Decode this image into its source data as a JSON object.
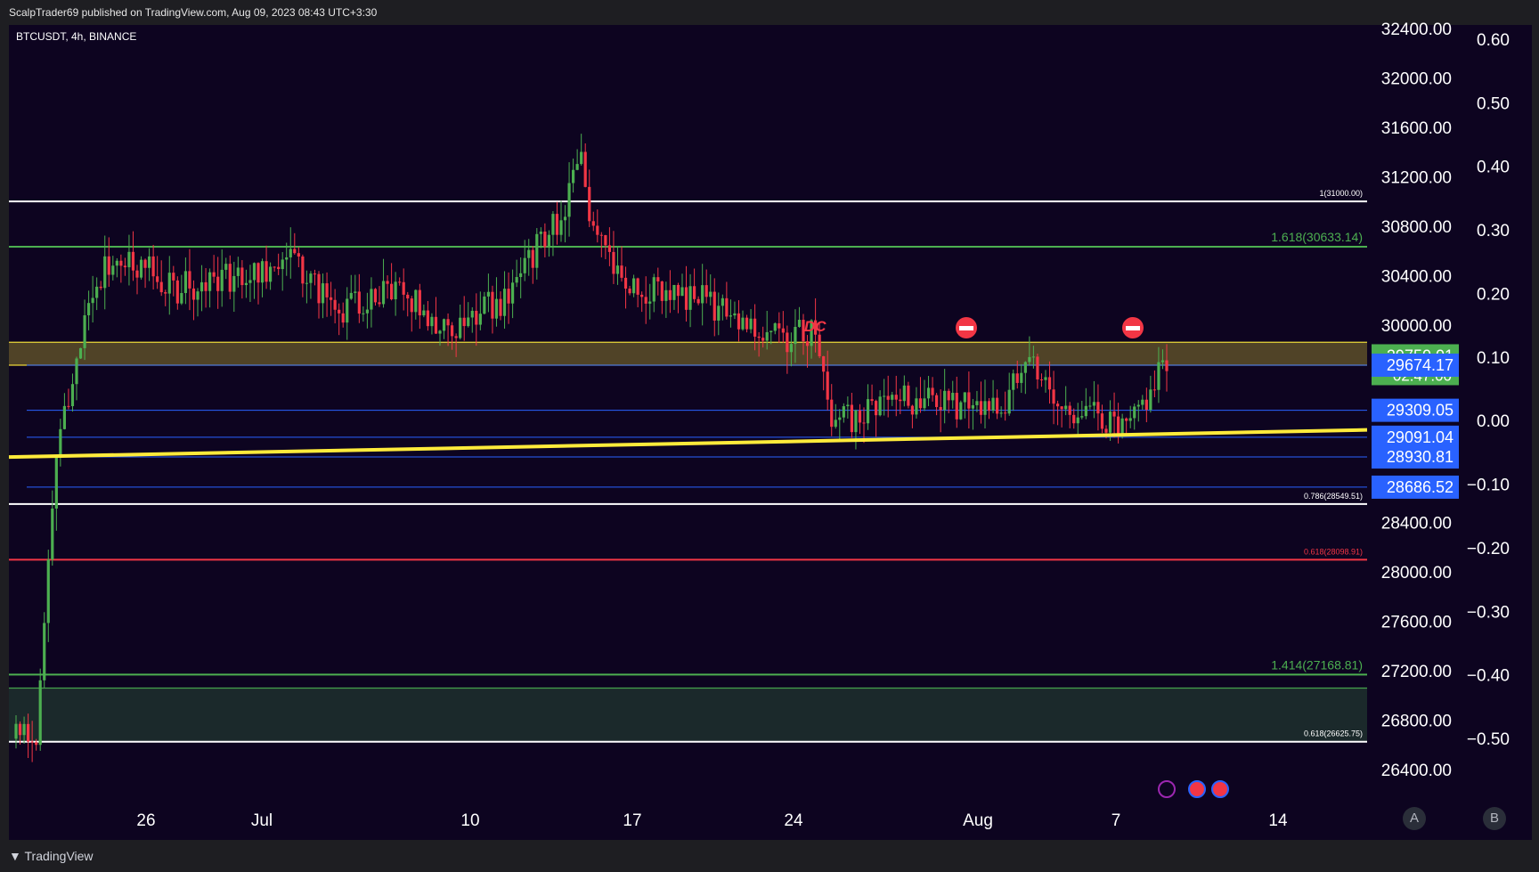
{
  "header": {
    "publisher_line": "ScalpTrader69 published on TradingView.com, Aug 09, 2023 08:43 UTC+3:30"
  },
  "footer": {
    "brand": "TradingView"
  },
  "chart_data": {
    "type": "candlestick",
    "title": "BTCUSDT, 4h, BINANCE",
    "price_axis": {
      "ticks": [
        "32400.00",
        "32000.00",
        "31600.00",
        "31200.00",
        "30800.00",
        "30400.00",
        "30000.00",
        "28400.00",
        "28000.00",
        "27600.00",
        "27200.00",
        "26800.00",
        "26400.00"
      ],
      "range": [
        26200,
        32500
      ]
    },
    "ratio_axis": {
      "ticks": [
        "0.60",
        "0.50",
        "0.40",
        "0.30",
        "0.20",
        "0.10",
        "0.00",
        "−0.10",
        "−0.20",
        "−0.30",
        "−0.40",
        "−0.50"
      ],
      "range": [
        -0.55,
        0.65
      ]
    },
    "x_axis": {
      "ticks": [
        "26",
        "Jul",
        "10",
        "17",
        "24",
        "Aug",
        "7",
        "14"
      ]
    },
    "price_labels": [
      {
        "value": "29750.01",
        "sub": "02:47:00",
        "color": "#4caf50"
      },
      {
        "value": "29674.17",
        "color": "#2962ff"
      },
      {
        "value": "29309.05",
        "color": "#2962ff"
      },
      {
        "value": "29091.04",
        "color": "#2962ff"
      },
      {
        "value": "28930.81",
        "color": "#2962ff"
      },
      {
        "value": "28686.52",
        "color": "#2962ff"
      }
    ],
    "horizontal_levels": [
      {
        "price": 31000.0,
        "label": "1(31000.00)",
        "color": "#ffffff"
      },
      {
        "price": 30633.14,
        "label": "1.618(30633.14)",
        "color": "#4caf50"
      },
      {
        "price": 28549.51,
        "label": "0.786(28549.51)",
        "color": "#ffffff"
      },
      {
        "price": 28098.91,
        "label": "0.618(28098.91)",
        "color": "#f23645"
      },
      {
        "price": 27168.81,
        "label": "1.414(27168.81)",
        "color": "#4caf50"
      },
      {
        "price": 26625.75,
        "label": "0.618(26625.75)",
        "color": "#ffffff"
      }
    ],
    "zones": [
      {
        "from": 29674.17,
        "to": 29860.0,
        "color": "#ffeb3b"
      },
      {
        "from": 26625.75,
        "to": 27060.0,
        "color": "#4caf50"
      }
    ],
    "annotations": [
      {
        "text": "DC",
        "color": "#f23645"
      }
    ],
    "trendline": {
      "start_price": 28930.0,
      "end_price": 29150.0,
      "color": "#ffeb3b"
    },
    "candle_seed": 69,
    "candles_count": 286,
    "colors": {
      "up": "#4caf50",
      "down": "#f23645",
      "background": "#0d0420"
    }
  },
  "scale_buttons": [
    "A",
    "B"
  ]
}
